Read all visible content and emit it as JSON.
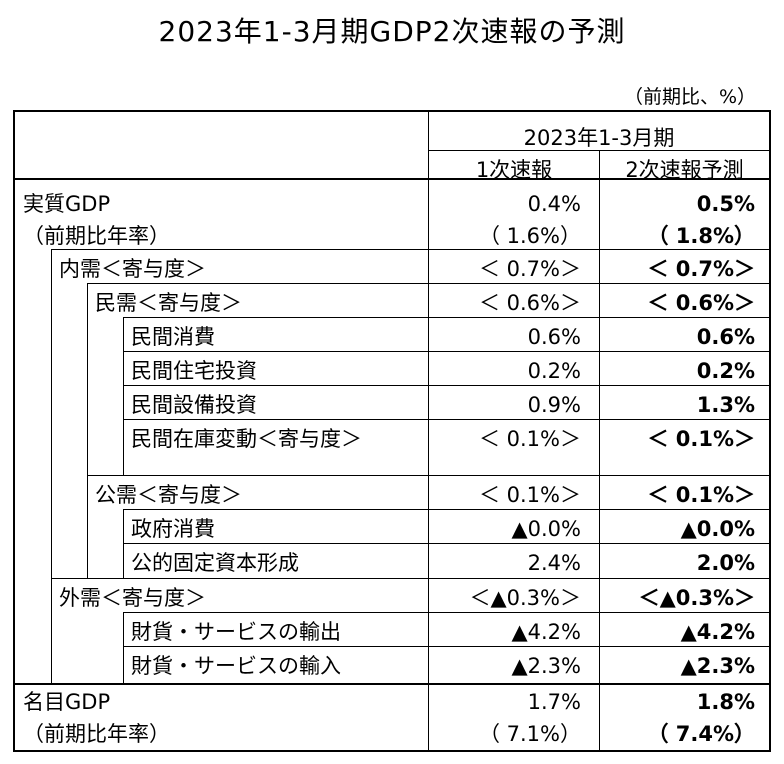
{
  "title": "2023年1-3月期GDP2次速報の予測",
  "unit": "（前期比、%）",
  "header": {
    "period": "2023年1-3月期",
    "col1": "1次速報",
    "col2": "2次速報予測"
  },
  "rows": [
    {
      "label": "実質GDP",
      "v1": "0.4%",
      "v2": "0.5%"
    },
    {
      "label": "（前期比年率）",
      "v1": "（ 1.6%）",
      "v2": "（ 1.8%）"
    },
    {
      "label": "内需＜寄与度＞",
      "v1": "＜ 0.7%＞",
      "v2": "＜ 0.7%＞"
    },
    {
      "label": "民需＜寄与度＞",
      "v1": "＜ 0.6%＞",
      "v2": "＜ 0.6%＞"
    },
    {
      "label": "民間消費",
      "v1": "0.6%",
      "v2": "0.6%"
    },
    {
      "label": "民間住宅投資",
      "v1": "0.2%",
      "v2": "0.2%"
    },
    {
      "label": "民間設備投資",
      "v1": "0.9%",
      "v2": "1.3%"
    },
    {
      "label": "民間在庫変動＜寄与度＞",
      "v1": "＜ 0.1%＞",
      "v2": "＜ 0.1%＞"
    },
    {
      "label": "公需＜寄与度＞",
      "v1": "＜ 0.1%＞",
      "v2": "＜ 0.1%＞"
    },
    {
      "label": "政府消費",
      "v1": "▲0.0%",
      "v2": "▲0.0%"
    },
    {
      "label": "公的固定資本形成",
      "v1": "2.4%",
      "v2": "2.0%"
    },
    {
      "label": "外需＜寄与度＞",
      "v1": "＜▲0.3%＞",
      "v2": "＜▲0.3%＞"
    },
    {
      "label": "財貨・サービスの輸出",
      "v1": "▲4.2%",
      "v2": "▲4.2%"
    },
    {
      "label": "財貨・サービスの輸入",
      "v1": "▲2.3%",
      "v2": "▲2.3%"
    },
    {
      "label": "名目GDP",
      "v1": "1.7%",
      "v2": "1.8%"
    },
    {
      "label": "（前期比年率）",
      "v1": "（ 7.1%）",
      "v2": "（ 7.4%）"
    }
  ]
}
